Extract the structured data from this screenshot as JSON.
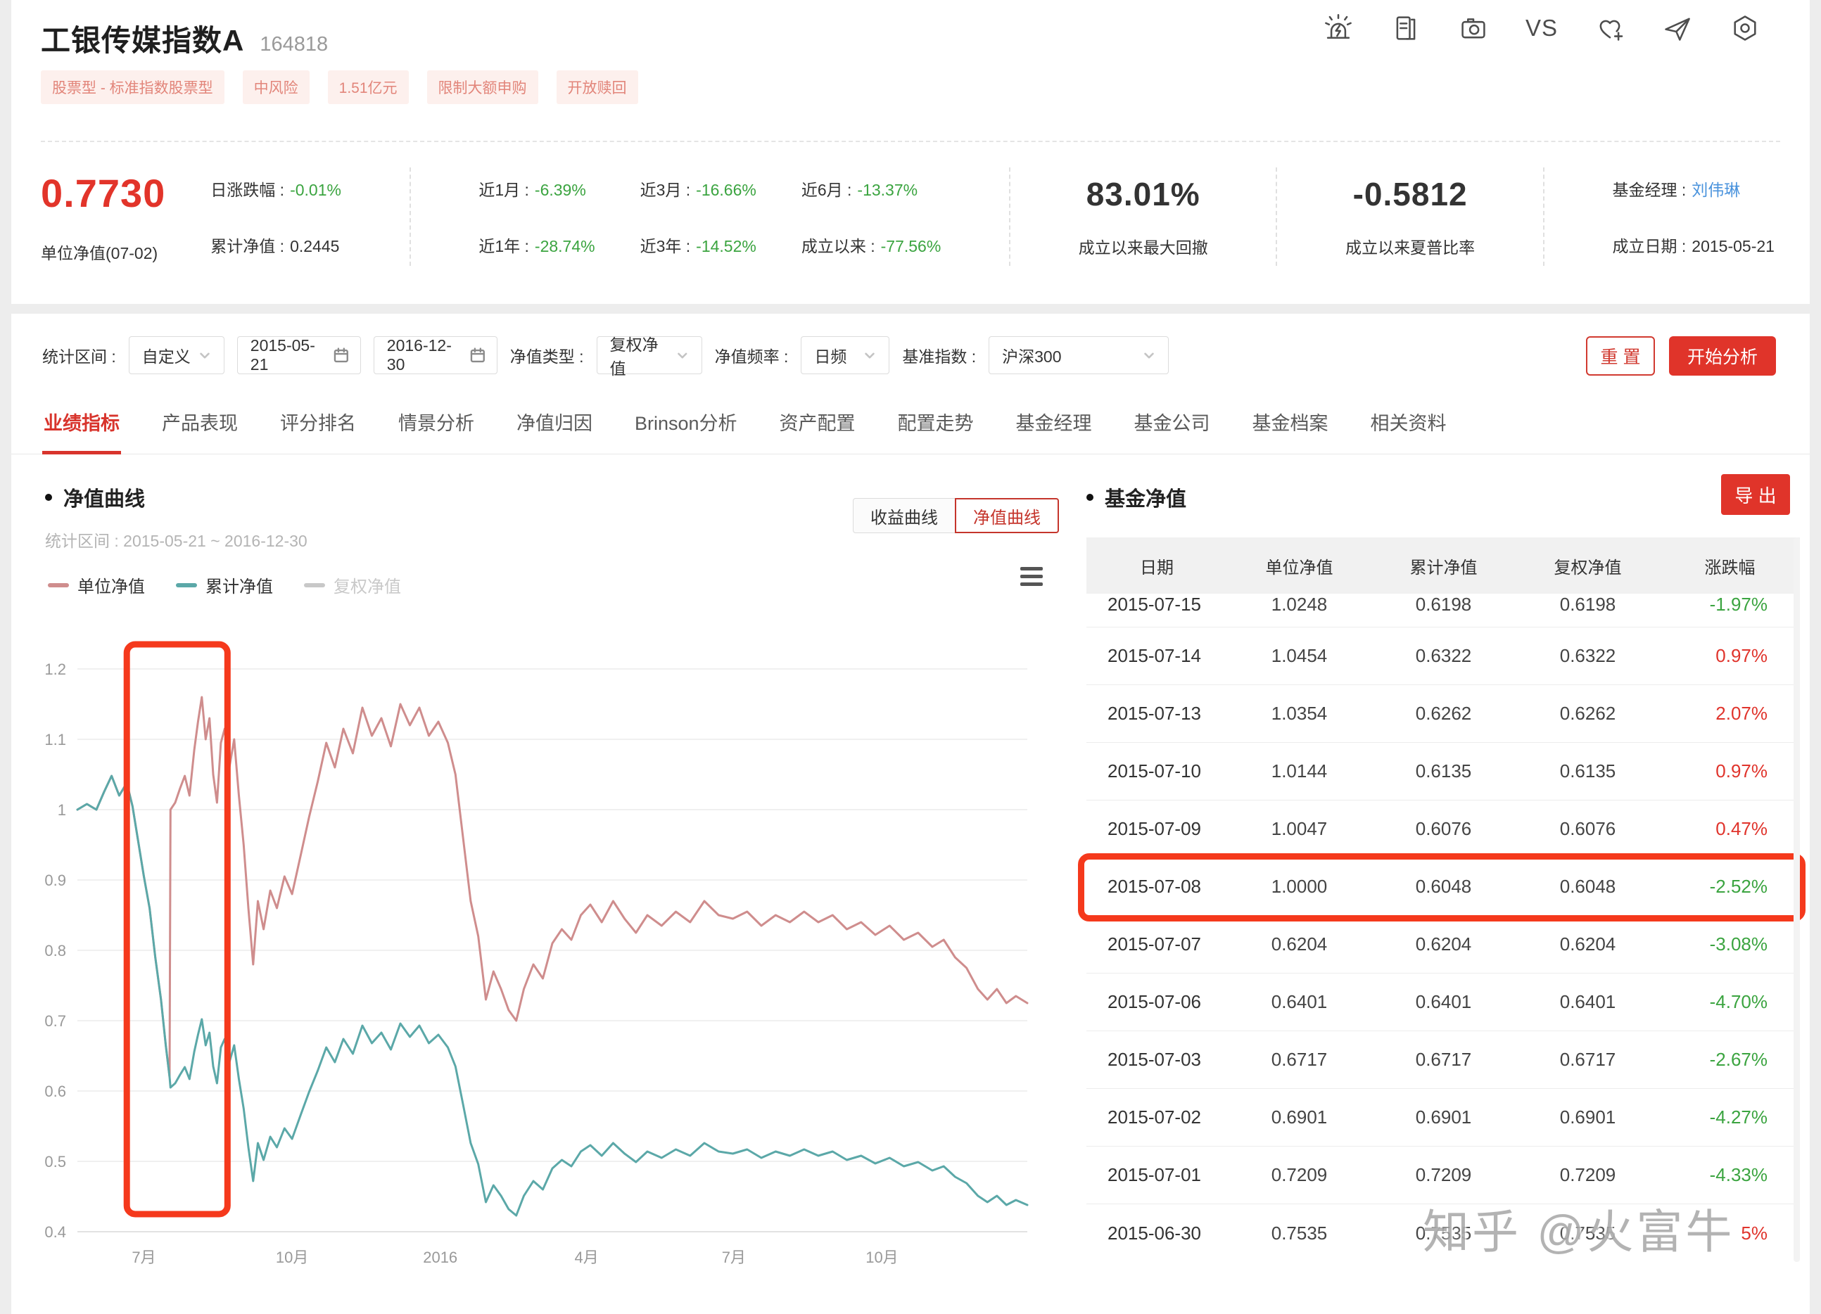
{
  "header": {
    "title": "工银传媒指数A",
    "code": "164818",
    "vs_label": "VS",
    "tags": [
      "股票型 - 标准指数股票型",
      "中风险",
      "1.51亿元",
      "限制大额申购",
      "开放赎回"
    ]
  },
  "stats": {
    "nav_value": "0.7730",
    "nav_label": "单位净值(07-02)",
    "daily_label": "日涨跌幅 :",
    "daily_value": "-0.01%",
    "cum_label": "累计净值 :",
    "cum_value": "0.2445",
    "returns": [
      {
        "label": "近1月 :",
        "value": "-6.39%"
      },
      {
        "label": "近1年 :",
        "value": "-28.74%"
      },
      {
        "label": "近3月 :",
        "value": "-16.66%"
      },
      {
        "label": "近3年 :",
        "value": "-14.52%"
      },
      {
        "label": "近6月 :",
        "value": "-13.37%"
      },
      {
        "label": "成立以来 :",
        "value": "-77.56%"
      }
    ],
    "drawdown_value": "83.01%",
    "drawdown_label": "成立以来最大回撤",
    "sharpe_value": "-0.5812",
    "sharpe_label": "成立以来夏普比率",
    "manager_label": "基金经理 :",
    "manager_value": "刘伟琳",
    "inception_label": "成立日期 :",
    "inception_value": "2015-05-21"
  },
  "filters": {
    "period_label": "统计区间 :",
    "period_value": "自定义",
    "date_start": "2015-05-21",
    "date_end": "2016-12-30",
    "nav_type_label": "净值类型 :",
    "nav_type_value": "复权净值",
    "freq_label": "净值频率 :",
    "freq_value": "日频",
    "benchmark_label": "基准指数 :",
    "benchmark_value": "沪深300",
    "reset_label": "重 置",
    "analyze_label": "开始分析"
  },
  "tabs": {
    "active_index": 0,
    "items": [
      "业绩指标",
      "产品表现",
      "评分排名",
      "情景分析",
      "净值归因",
      "Brinson分析",
      "资产配置",
      "配置走势",
      "基金经理",
      "基金公司",
      "基金档案",
      "相关资料"
    ]
  },
  "chart_section": {
    "title": "净值曲线",
    "subtitle": "统计区间 : 2015-05-21 ~ 2016-12-30",
    "toggle": [
      {
        "label": "收益曲线",
        "active": false
      },
      {
        "label": "净值曲线",
        "active": true
      }
    ],
    "legend": [
      {
        "label": "单位净值",
        "color": "#cf8d8d",
        "muted": false
      },
      {
        "label": "累计净值",
        "color": "#5ba8a8",
        "muted": false
      },
      {
        "label": "复权净值",
        "color": "#c8c8c8",
        "muted": true
      }
    ]
  },
  "chart_data": {
    "type": "line",
    "title": "净值曲线",
    "x_range": [
      "2015-05-21",
      "2016-12-30"
    ],
    "ylim": [
      0.4,
      1.2
    ],
    "yticks": [
      0.4,
      0.5,
      0.6,
      0.7,
      0.8,
      0.9,
      1,
      1.1,
      1.2
    ],
    "xticks": [
      {
        "label": "7月",
        "pos": 0.07
      },
      {
        "label": "10月",
        "pos": 0.226
      },
      {
        "label": "2016",
        "pos": 0.382
      },
      {
        "label": "4月",
        "pos": 0.536
      },
      {
        "label": "7月",
        "pos": 0.691
      },
      {
        "label": "10月",
        "pos": 0.847
      }
    ],
    "grid": true,
    "legend_position": "top-left",
    "note": "单位净值 jumps from 0.6204 to 1.0000 on 2015-07-08 (share conversion); x positions are fractions of 2015-05-21~2016-12-30",
    "annotation": {
      "type": "rect",
      "x0": 0.052,
      "x1": 0.158,
      "y0": 0.425,
      "y1": 1.235,
      "color": "#f5391c"
    },
    "series": [
      {
        "name": "单位净值",
        "color": "#cf8d8d",
        "points": [
          [
            0,
            1.0
          ],
          [
            0.01,
            1.008
          ],
          [
            0.02,
            1.0
          ],
          [
            0.028,
            1.025
          ],
          [
            0.036,
            1.048
          ],
          [
            0.044,
            1.02
          ],
          [
            0.052,
            1.038
          ],
          [
            0.058,
            1.005
          ],
          [
            0.064,
            0.955
          ],
          [
            0.07,
            0.905
          ],
          [
            0.076,
            0.86
          ],
          [
            0.082,
            0.79
          ],
          [
            0.088,
            0.73
          ],
          [
            0.093,
            0.665
          ],
          [
            0.097,
            0.62
          ],
          [
            0.098,
            1.0
          ],
          [
            0.103,
            1.01
          ],
          [
            0.108,
            1.03
          ],
          [
            0.113,
            1.048
          ],
          [
            0.118,
            1.02
          ],
          [
            0.123,
            1.085
          ],
          [
            0.127,
            1.125
          ],
          [
            0.131,
            1.16
          ],
          [
            0.135,
            1.1
          ],
          [
            0.139,
            1.13
          ],
          [
            0.143,
            1.05
          ],
          [
            0.147,
            1.01
          ],
          [
            0.151,
            1.095
          ],
          [
            0.155,
            1.115
          ],
          [
            0.16,
            1.06
          ],
          [
            0.165,
            1.1
          ],
          [
            0.17,
            1.02
          ],
          [
            0.175,
            0.95
          ],
          [
            0.18,
            0.86
          ],
          [
            0.185,
            0.78
          ],
          [
            0.19,
            0.87
          ],
          [
            0.196,
            0.83
          ],
          [
            0.203,
            0.885
          ],
          [
            0.21,
            0.86
          ],
          [
            0.218,
            0.905
          ],
          [
            0.226,
            0.88
          ],
          [
            0.235,
            0.935
          ],
          [
            0.244,
            0.99
          ],
          [
            0.253,
            1.04
          ],
          [
            0.262,
            1.095
          ],
          [
            0.271,
            1.06
          ],
          [
            0.28,
            1.115
          ],
          [
            0.29,
            1.08
          ],
          [
            0.3,
            1.145
          ],
          [
            0.31,
            1.105
          ],
          [
            0.32,
            1.13
          ],
          [
            0.33,
            1.09
          ],
          [
            0.34,
            1.15
          ],
          [
            0.35,
            1.12
          ],
          [
            0.36,
            1.145
          ],
          [
            0.37,
            1.105
          ],
          [
            0.38,
            1.125
          ],
          [
            0.39,
            1.095
          ],
          [
            0.398,
            1.05
          ],
          [
            0.406,
            0.96
          ],
          [
            0.414,
            0.87
          ],
          [
            0.422,
            0.82
          ],
          [
            0.43,
            0.73
          ],
          [
            0.438,
            0.77
          ],
          [
            0.446,
            0.745
          ],
          [
            0.454,
            0.715
          ],
          [
            0.462,
            0.7
          ],
          [
            0.47,
            0.745
          ],
          [
            0.48,
            0.78
          ],
          [
            0.49,
            0.76
          ],
          [
            0.5,
            0.81
          ],
          [
            0.51,
            0.83
          ],
          [
            0.52,
            0.815
          ],
          [
            0.53,
            0.85
          ],
          [
            0.54,
            0.865
          ],
          [
            0.552,
            0.84
          ],
          [
            0.564,
            0.87
          ],
          [
            0.576,
            0.845
          ],
          [
            0.588,
            0.825
          ],
          [
            0.6,
            0.85
          ],
          [
            0.615,
            0.835
          ],
          [
            0.63,
            0.855
          ],
          [
            0.645,
            0.84
          ],
          [
            0.66,
            0.87
          ],
          [
            0.675,
            0.85
          ],
          [
            0.69,
            0.845
          ],
          [
            0.705,
            0.855
          ],
          [
            0.72,
            0.835
          ],
          [
            0.735,
            0.85
          ],
          [
            0.75,
            0.84
          ],
          [
            0.765,
            0.855
          ],
          [
            0.78,
            0.84
          ],
          [
            0.795,
            0.85
          ],
          [
            0.81,
            0.83
          ],
          [
            0.825,
            0.84
          ],
          [
            0.84,
            0.822
          ],
          [
            0.855,
            0.835
          ],
          [
            0.87,
            0.815
          ],
          [
            0.885,
            0.825
          ],
          [
            0.9,
            0.805
          ],
          [
            0.912,
            0.815
          ],
          [
            0.924,
            0.79
          ],
          [
            0.936,
            0.775
          ],
          [
            0.948,
            0.745
          ],
          [
            0.958,
            0.73
          ],
          [
            0.968,
            0.745
          ],
          [
            0.978,
            0.725
          ],
          [
            0.988,
            0.735
          ],
          [
            1,
            0.725
          ]
        ]
      },
      {
        "name": "累计净值",
        "color": "#5ba8a8",
        "points": [
          [
            0,
            1.0
          ],
          [
            0.01,
            1.008
          ],
          [
            0.02,
            1.0
          ],
          [
            0.028,
            1.025
          ],
          [
            0.036,
            1.048
          ],
          [
            0.044,
            1.02
          ],
          [
            0.052,
            1.038
          ],
          [
            0.058,
            1.005
          ],
          [
            0.064,
            0.955
          ],
          [
            0.07,
            0.905
          ],
          [
            0.076,
            0.86
          ],
          [
            0.082,
            0.79
          ],
          [
            0.088,
            0.73
          ],
          [
            0.093,
            0.665
          ],
          [
            0.097,
            0.62
          ],
          [
            0.098,
            0.605
          ],
          [
            0.103,
            0.611
          ],
          [
            0.108,
            0.623
          ],
          [
            0.113,
            0.634
          ],
          [
            0.118,
            0.617
          ],
          [
            0.123,
            0.656
          ],
          [
            0.127,
            0.68
          ],
          [
            0.131,
            0.702
          ],
          [
            0.135,
            0.665
          ],
          [
            0.139,
            0.683
          ],
          [
            0.143,
            0.635
          ],
          [
            0.147,
            0.611
          ],
          [
            0.151,
            0.662
          ],
          [
            0.155,
            0.674
          ],
          [
            0.16,
            0.641
          ],
          [
            0.165,
            0.665
          ],
          [
            0.17,
            0.617
          ],
          [
            0.175,
            0.575
          ],
          [
            0.18,
            0.52
          ],
          [
            0.185,
            0.472
          ],
          [
            0.19,
            0.526
          ],
          [
            0.196,
            0.502
          ],
          [
            0.203,
            0.535
          ],
          [
            0.21,
            0.52
          ],
          [
            0.218,
            0.547
          ],
          [
            0.226,
            0.532
          ],
          [
            0.235,
            0.566
          ],
          [
            0.244,
            0.599
          ],
          [
            0.253,
            0.629
          ],
          [
            0.262,
            0.662
          ],
          [
            0.271,
            0.641
          ],
          [
            0.28,
            0.674
          ],
          [
            0.29,
            0.653
          ],
          [
            0.3,
            0.693
          ],
          [
            0.31,
            0.668
          ],
          [
            0.32,
            0.683
          ],
          [
            0.33,
            0.659
          ],
          [
            0.34,
            0.696
          ],
          [
            0.35,
            0.677
          ],
          [
            0.36,
            0.693
          ],
          [
            0.37,
            0.668
          ],
          [
            0.38,
            0.68
          ],
          [
            0.39,
            0.662
          ],
          [
            0.398,
            0.635
          ],
          [
            0.406,
            0.581
          ],
          [
            0.414,
            0.526
          ],
          [
            0.422,
            0.496
          ],
          [
            0.43,
            0.442
          ],
          [
            0.438,
            0.466
          ],
          [
            0.446,
            0.451
          ],
          [
            0.454,
            0.432
          ],
          [
            0.462,
            0.423
          ],
          [
            0.47,
            0.451
          ],
          [
            0.48,
            0.472
          ],
          [
            0.49,
            0.46
          ],
          [
            0.5,
            0.49
          ],
          [
            0.51,
            0.502
          ],
          [
            0.52,
            0.493
          ],
          [
            0.53,
            0.514
          ],
          [
            0.54,
            0.523
          ],
          [
            0.552,
            0.508
          ],
          [
            0.564,
            0.526
          ],
          [
            0.576,
            0.511
          ],
          [
            0.588,
            0.499
          ],
          [
            0.6,
            0.514
          ],
          [
            0.615,
            0.505
          ],
          [
            0.63,
            0.517
          ],
          [
            0.645,
            0.508
          ],
          [
            0.66,
            0.526
          ],
          [
            0.675,
            0.514
          ],
          [
            0.69,
            0.511
          ],
          [
            0.705,
            0.517
          ],
          [
            0.72,
            0.505
          ],
          [
            0.735,
            0.514
          ],
          [
            0.75,
            0.508
          ],
          [
            0.765,
            0.517
          ],
          [
            0.78,
            0.508
          ],
          [
            0.795,
            0.514
          ],
          [
            0.81,
            0.502
          ],
          [
            0.825,
            0.508
          ],
          [
            0.84,
            0.497
          ],
          [
            0.855,
            0.505
          ],
          [
            0.87,
            0.493
          ],
          [
            0.885,
            0.499
          ],
          [
            0.9,
            0.487
          ],
          [
            0.912,
            0.493
          ],
          [
            0.924,
            0.478
          ],
          [
            0.936,
            0.469
          ],
          [
            0.948,
            0.451
          ],
          [
            0.958,
            0.442
          ],
          [
            0.968,
            0.451
          ],
          [
            0.978,
            0.438
          ],
          [
            0.988,
            0.445
          ],
          [
            1,
            0.438
          ]
        ]
      }
    ]
  },
  "table_section": {
    "title": "基金净值",
    "export_label": "导 出",
    "columns": [
      "日期",
      "单位净值",
      "累计净值",
      "复权净值",
      "涨跌幅"
    ],
    "rows": [
      {
        "date": "2015-07-15",
        "unit": "1.0248",
        "cum": "0.6198",
        "adj": "0.6198",
        "chg": "-1.97%",
        "dir": "down",
        "clipped": true
      },
      {
        "date": "2015-07-14",
        "unit": "1.0454",
        "cum": "0.6322",
        "adj": "0.6322",
        "chg": "0.97%",
        "dir": "up"
      },
      {
        "date": "2015-07-13",
        "unit": "1.0354",
        "cum": "0.6262",
        "adj": "0.6262",
        "chg": "2.07%",
        "dir": "up"
      },
      {
        "date": "2015-07-10",
        "unit": "1.0144",
        "cum": "0.6135",
        "adj": "0.6135",
        "chg": "0.97%",
        "dir": "up"
      },
      {
        "date": "2015-07-09",
        "unit": "1.0047",
        "cum": "0.6076",
        "adj": "0.6076",
        "chg": "0.47%",
        "dir": "up"
      },
      {
        "date": "2015-07-08",
        "unit": "1.0000",
        "cum": "0.6048",
        "adj": "0.6048",
        "chg": "-2.52%",
        "dir": "down",
        "highlight": true
      },
      {
        "date": "2015-07-07",
        "unit": "0.6204",
        "cum": "0.6204",
        "adj": "0.6204",
        "chg": "-3.08%",
        "dir": "down"
      },
      {
        "date": "2015-07-06",
        "unit": "0.6401",
        "cum": "0.6401",
        "adj": "0.6401",
        "chg": "-4.70%",
        "dir": "down"
      },
      {
        "date": "2015-07-03",
        "unit": "0.6717",
        "cum": "0.6717",
        "adj": "0.6717",
        "chg": "-2.67%",
        "dir": "down"
      },
      {
        "date": "2015-07-02",
        "unit": "0.6901",
        "cum": "0.6901",
        "adj": "0.6901",
        "chg": "-4.27%",
        "dir": "down"
      },
      {
        "date": "2015-07-01",
        "unit": "0.7209",
        "cum": "0.7209",
        "adj": "0.7209",
        "chg": "-4.33%",
        "dir": "down"
      },
      {
        "date": "2015-06-30",
        "unit": "0.7535",
        "cum": "0.7535",
        "adj": "0.7535",
        "chg": "5%",
        "dir": "up",
        "obscured": true
      }
    ]
  },
  "watermark": "知乎 @火富牛"
}
